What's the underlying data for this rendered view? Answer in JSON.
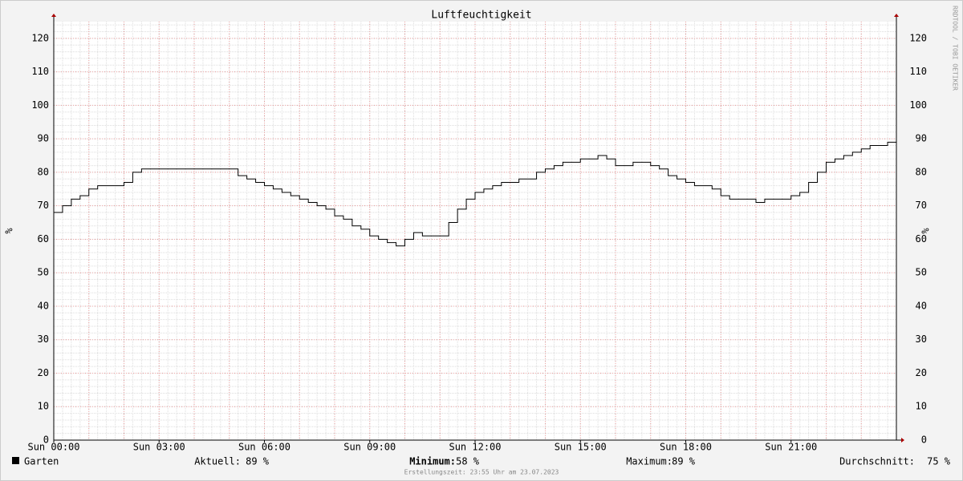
{
  "chart_data": {
    "type": "line",
    "title": "Luftfeuchtigkeit",
    "y_label": "%",
    "watermark": "RRDTOOL / TOBI OETIKER",
    "x": [
      0,
      0.25,
      0.5,
      0.75,
      1,
      1.25,
      1.5,
      1.75,
      2,
      2.25,
      2.5,
      2.75,
      3,
      3.25,
      3.5,
      3.75,
      4,
      4.25,
      4.5,
      4.75,
      5,
      5.25,
      5.5,
      5.75,
      6,
      6.25,
      6.5,
      6.75,
      7,
      7.25,
      7.5,
      7.75,
      8,
      8.25,
      8.5,
      8.75,
      9,
      9.25,
      9.5,
      9.75,
      10,
      10.25,
      10.5,
      10.75,
      11,
      11.25,
      11.5,
      11.75,
      12,
      12.25,
      12.5,
      12.75,
      13,
      13.25,
      13.5,
      13.75,
      14,
      14.25,
      14.5,
      14.75,
      15,
      15.25,
      15.5,
      15.75,
      16,
      16.25,
      16.5,
      16.75,
      17,
      17.25,
      17.5,
      17.75,
      18,
      18.25,
      18.5,
      18.75,
      19,
      19.25,
      19.5,
      19.75,
      20,
      20.25,
      20.5,
      20.75,
      21,
      21.25,
      21.5,
      21.75,
      22,
      22.25,
      22.5,
      22.75,
      23,
      23.25,
      23.5,
      23.75,
      24
    ],
    "series": [
      {
        "name": "Garten",
        "color": "#000000",
        "values": [
          68,
          70,
          72,
          73,
          75,
          76,
          76,
          76,
          77,
          80,
          81,
          81,
          81,
          81,
          81,
          81,
          81,
          81,
          81,
          81,
          81,
          79,
          78,
          77,
          76,
          75,
          74,
          73,
          72,
          71,
          70,
          69,
          67,
          66,
          64,
          63,
          61,
          60,
          59,
          58,
          60,
          62,
          61,
          61,
          61,
          65,
          69,
          72,
          74,
          75,
          76,
          77,
          77,
          78,
          78,
          80,
          81,
          82,
          83,
          83,
          84,
          84,
          85,
          84,
          82,
          82,
          83,
          83,
          82,
          81,
          79,
          78,
          77,
          76,
          76,
          75,
          73,
          72,
          72,
          72,
          71,
          72,
          72,
          72,
          73,
          74,
          77,
          80,
          83,
          84,
          85,
          86,
          87,
          88,
          88,
          89,
          89
        ]
      }
    ],
    "xlim": [
      0,
      24
    ],
    "xticks": [
      {
        "value": 0,
        "label": "Sun 00:00"
      },
      {
        "value": 3,
        "label": "Sun 03:00"
      },
      {
        "value": 6,
        "label": "Sun 06:00"
      },
      {
        "value": 9,
        "label": "Sun 09:00"
      },
      {
        "value": 12,
        "label": "Sun 12:00"
      },
      {
        "value": 15,
        "label": "Sun 15:00"
      },
      {
        "value": 18,
        "label": "Sun 18:00"
      },
      {
        "value": 21,
        "label": "Sun 21:00"
      }
    ],
    "ylim": [
      0,
      125
    ],
    "yticks": [
      0,
      10,
      20,
      30,
      40,
      50,
      60,
      70,
      80,
      90,
      100,
      110,
      120
    ],
    "xgrid_major": 1,
    "xgrid_minor": 0.25,
    "ygrid_minor": 2,
    "grid": true,
    "stats": [
      {
        "label": "Aktuell:",
        "value_label": "89 %"
      },
      {
        "label": "Minimum:",
        "value_label": "58 %"
      },
      {
        "label": "Maximum:",
        "value_label": "89 %"
      },
      {
        "label": "Durchschnitt:",
        "value_label": "75 %"
      }
    ],
    "footer": "Erstellungszeit: 23:55 Uhr am 23.07.2023"
  }
}
